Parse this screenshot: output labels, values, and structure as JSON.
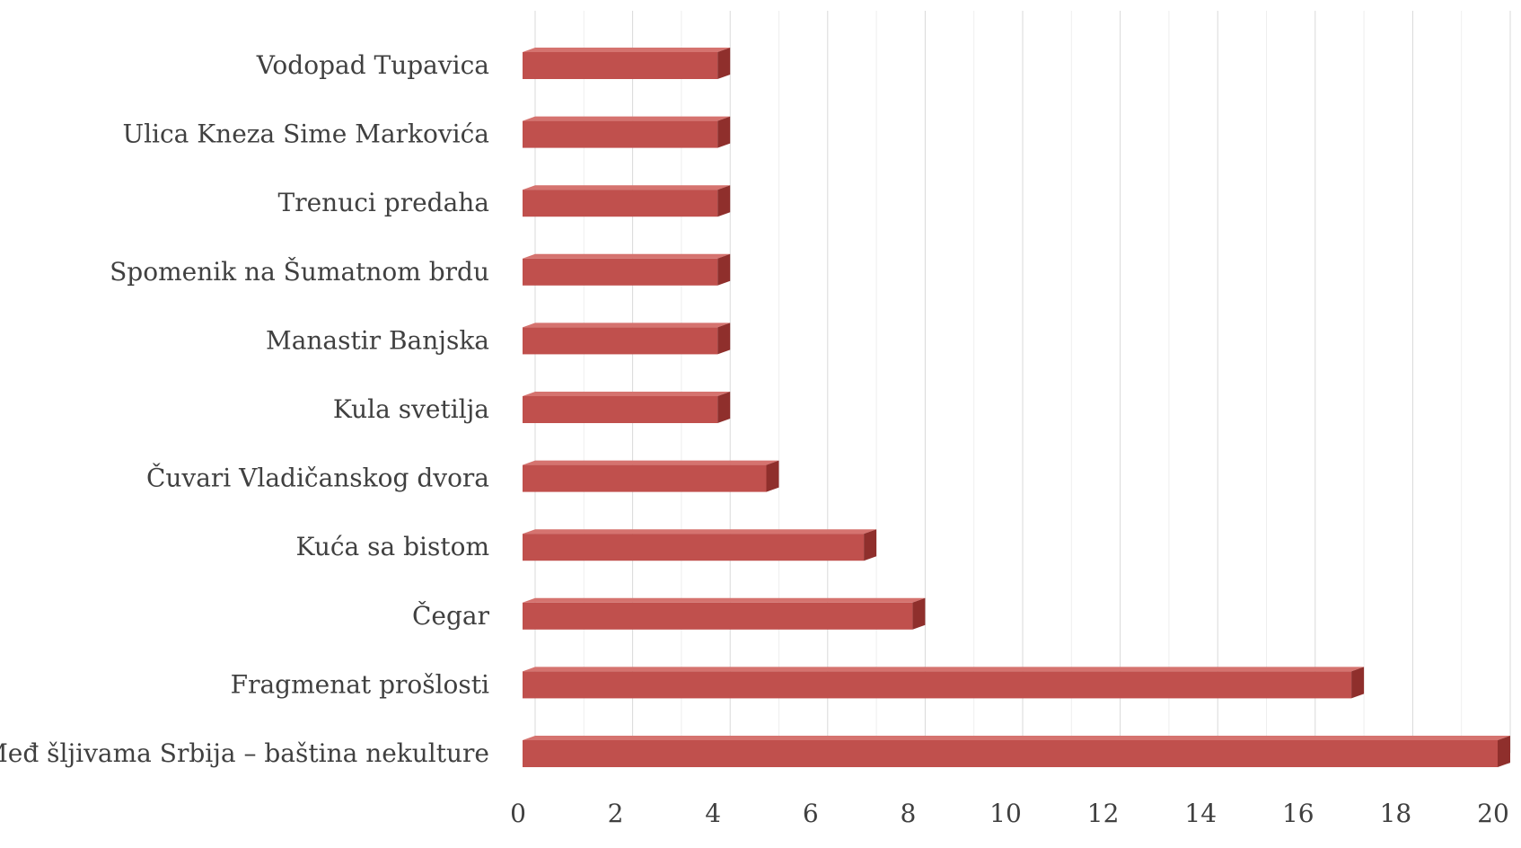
{
  "chart_data": {
    "type": "bar",
    "orientation": "horizontal",
    "style": "3d",
    "title": "",
    "xlabel": "",
    "ylabel": "",
    "categories": [
      "Vodopad Tupavica",
      "Ulica Kneza Sime Markovića",
      "Trenuci predaha",
      "Spomenik na Šumatnom brdu",
      "Manastir Banjska",
      "Kula svetilja",
      "Čuvari Vladičanskog dvora",
      "Kuća sa bistom",
      "Čegar",
      "Fragmenat prošlosti",
      "Međ šljivama Srbija – baština nekulture"
    ],
    "values": [
      4,
      4,
      4,
      4,
      4,
      4,
      5,
      7,
      8,
      17,
      20
    ],
    "xlim": [
      0,
      20
    ],
    "xticks": [
      0,
      2,
      4,
      6,
      8,
      10,
      12,
      14,
      16,
      18,
      20
    ],
    "grid": true,
    "legend": "none",
    "colors": {
      "bar_front": "#c0504d",
      "bar_top": "#d5736f",
      "bar_side": "#8f2f2c",
      "grid": "#d9d9d9",
      "text": "#404040"
    }
  }
}
